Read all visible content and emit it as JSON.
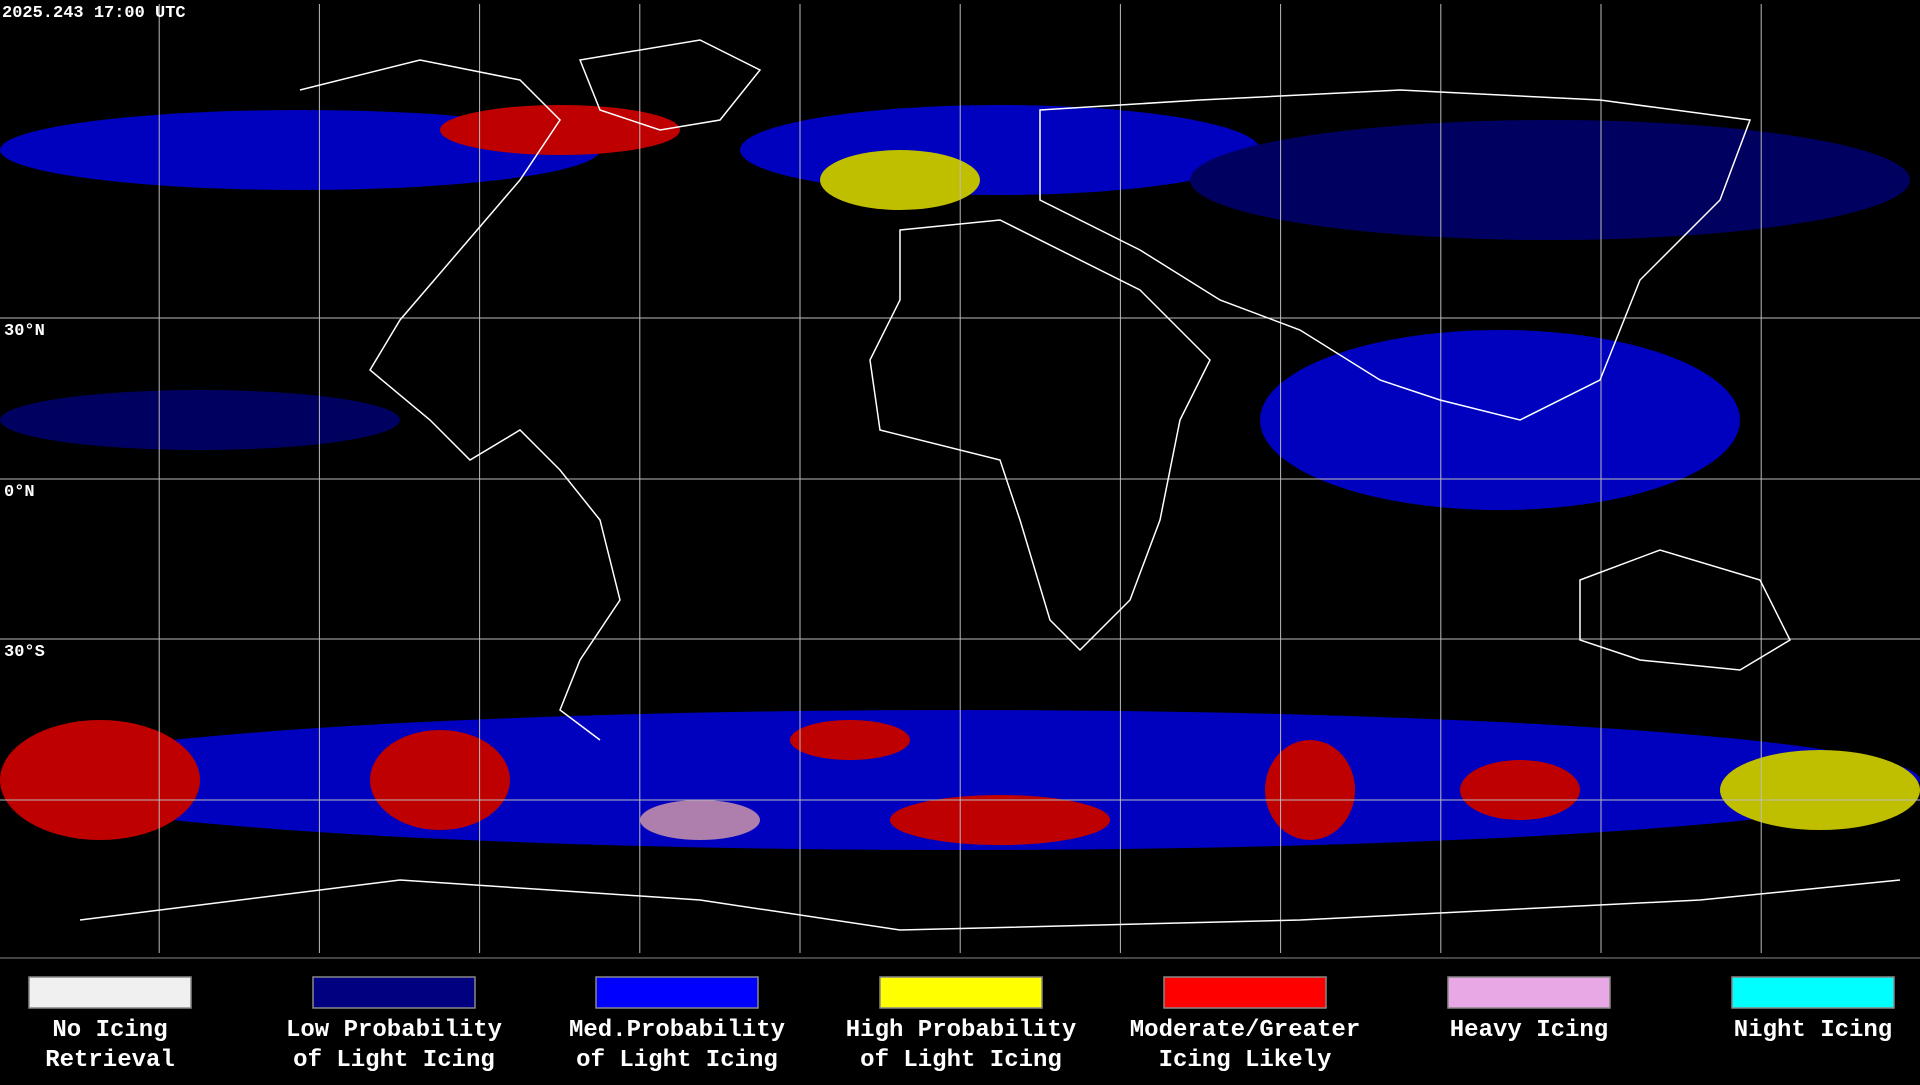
{
  "header": {
    "title": "2025.243 17:00 UTC"
  },
  "latitude_labels": [
    "30°N",
    "0°N",
    "30°S"
  ],
  "legend": [
    {
      "lines": [
        "No Icing",
        "Retrieval"
      ],
      "color": "#f0f0f0"
    },
    {
      "lines": [
        "Low Probability",
        "of Light Icing"
      ],
      "color": "#000080"
    },
    {
      "lines": [
        "Med.Probability",
        "of Light Icing"
      ],
      "color": "#0000ff"
    },
    {
      "lines": [
        "High Probability",
        "of Light Icing"
      ],
      "color": "#ffff00"
    },
    {
      "lines": [
        "Moderate/Greater",
        "Icing Likely"
      ],
      "color": "#ff0000"
    },
    {
      "lines": [
        "Heavy Icing"
      ],
      "color": "#e8a8e6"
    },
    {
      "lines": [
        "Night Icing"
      ],
      "color": "#00ffff"
    }
  ]
}
